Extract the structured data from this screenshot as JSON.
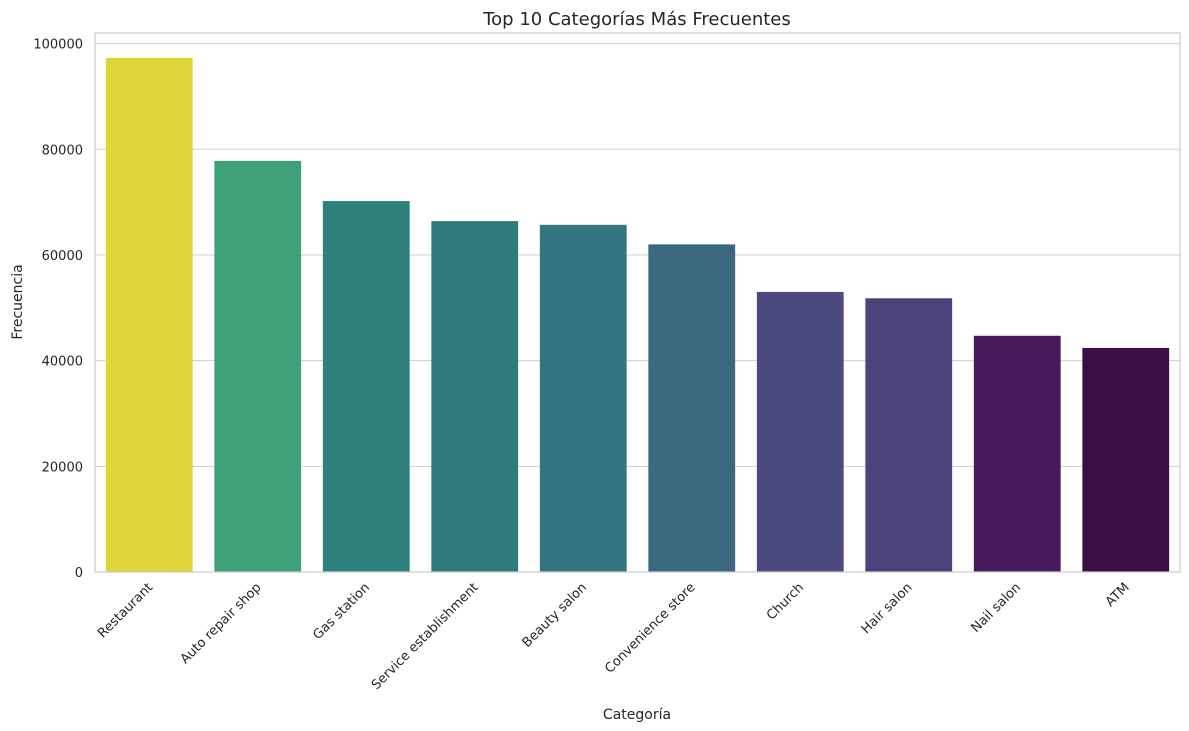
{
  "chart_data": {
    "type": "bar",
    "title": "Top 10 Categorías Más Frecuentes",
    "xlabel": "Categoría",
    "ylabel": "Frecuencia",
    "categories": [
      "Restaurant",
      "Auto repair shop",
      "Gas station",
      "Service establishment",
      "Beauty salon",
      "Convenience store",
      "Church",
      "Hair salon",
      "Nail salon",
      "ATM"
    ],
    "values": [
      97300,
      77800,
      70200,
      66400,
      65700,
      62000,
      53000,
      51800,
      44700,
      42400
    ],
    "colors": [
      "#e2d43b",
      "#3fa177",
      "#2d807c",
      "#2f7a7c",
      "#337580",
      "#3b677f",
      "#4b4a7e",
      "#4b4379",
      "#471b59",
      "#3d0e46"
    ],
    "ylim": [
      0,
      102000
    ],
    "yticks": [
      0,
      20000,
      40000,
      60000,
      80000,
      100000
    ],
    "ytick_labels": [
      "0",
      "20000",
      "40000",
      "60000",
      "80000",
      "100000"
    ],
    "grid": "horizontal",
    "legend": "none"
  }
}
